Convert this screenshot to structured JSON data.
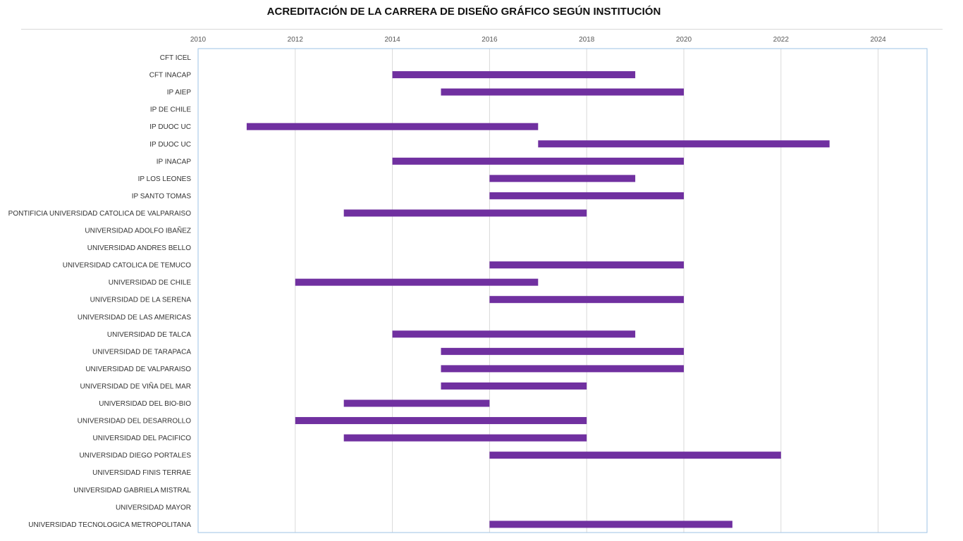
{
  "chart_data": {
    "type": "bar",
    "subtype": "horizontal-range",
    "title": "ACREDITACIÓN DE LA CARRERA DE DISEÑO GRÁFICO SEGÚN INSTITUCIÓN",
    "xlabel": "",
    "ylabel": "",
    "xlim": [
      2010,
      2025
    ],
    "xticks": [
      "2010",
      "2012",
      "2014",
      "2016",
      "2018",
      "2020",
      "2022",
      "2024"
    ],
    "grid": true,
    "legend": "none",
    "bar_color": "#7030a0",
    "categories": [
      "CFT ICEL",
      "CFT INACAP",
      "IP AIEP",
      "IP DE CHILE",
      "IP DUOC UC",
      "IP DUOC UC",
      "IP INACAP",
      "IP LOS LEONES",
      "IP SANTO TOMAS",
      "PONTIFICIA UNIVERSIDAD CATOLICA DE VALPARAISO",
      "UNIVERSIDAD ADOLFO IBAÑEZ",
      "UNIVERSIDAD ANDRES BELLO",
      "UNIVERSIDAD CATOLICA DE TEMUCO",
      "UNIVERSIDAD DE CHILE",
      "UNIVERSIDAD DE LA SERENA",
      "UNIVERSIDAD DE LAS AMERICAS",
      "UNIVERSIDAD DE TALCA",
      "UNIVERSIDAD DE TARAPACA",
      "UNIVERSIDAD DE VALPARAISO",
      "UNIVERSIDAD DE VIÑA DEL MAR",
      "UNIVERSIDAD DEL BIO-BIO",
      "UNIVERSIDAD DEL DESARROLLO",
      "UNIVERSIDAD DEL PACIFICO",
      "UNIVERSIDAD DIEGO PORTALES",
      "UNIVERSIDAD FINIS TERRAE",
      "UNIVERSIDAD GABRIELA MISTRAL",
      "UNIVERSIDAD MAYOR",
      "UNIVERSIDAD TECNOLOGICA METROPOLITANA"
    ],
    "series": [
      {
        "name": "Acreditación",
        "start": [
          null,
          2014,
          2015,
          null,
          2011,
          2017,
          2014,
          2016,
          2016,
          2013,
          null,
          null,
          2016,
          2012,
          2016,
          null,
          2014,
          2015,
          2015,
          2015,
          2013,
          2012,
          2013,
          2016,
          null,
          null,
          null,
          2016
        ],
        "end": [
          null,
          2019,
          2020,
          null,
          2017,
          2023,
          2020,
          2019,
          2020,
          2018,
          null,
          null,
          2020,
          2017,
          2020,
          null,
          2019,
          2020,
          2020,
          2018,
          2016,
          2018,
          2018,
          2022,
          null,
          null,
          null,
          2021
        ]
      }
    ]
  }
}
